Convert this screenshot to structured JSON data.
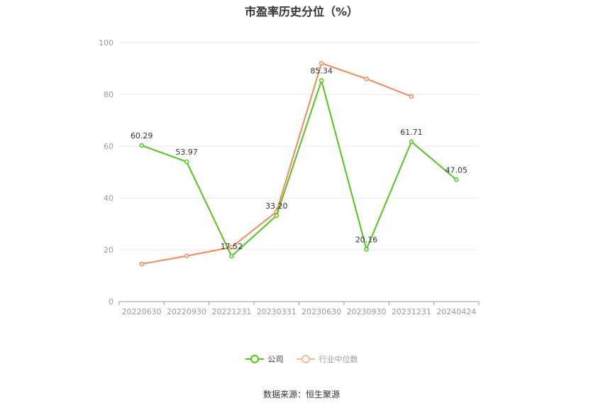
{
  "title": "市盈率历史分位（%）",
  "source": "数据来源：恒生聚源",
  "chart_data": {
    "type": "line",
    "title": "市盈率历史分位（%）",
    "categories": [
      "20220630",
      "20220930",
      "20221231",
      "20230331",
      "20230630",
      "20230930",
      "20231231",
      "20240424"
    ],
    "ylim": [
      0,
      100
    ],
    "yticks": [
      0,
      20,
      40,
      60,
      80,
      100
    ],
    "grid": true,
    "legend_position": "bottom",
    "series": [
      {
        "name": "公司",
        "color": "#52c41a",
        "values": [
          60.29,
          53.97,
          17.52,
          33.2,
          85.34,
          20.16,
          61.71,
          47.05
        ],
        "labels": [
          "60.29",
          "53.97",
          "17.52",
          "33.20",
          "85.34",
          "20.16",
          "61.71",
          "47.05"
        ]
      },
      {
        "name": "行业中位数",
        "color": "#f0895a",
        "values": [
          14.5,
          17.6,
          21.0,
          34.7,
          92.0,
          86.0,
          79.2,
          null
        ]
      }
    ]
  }
}
